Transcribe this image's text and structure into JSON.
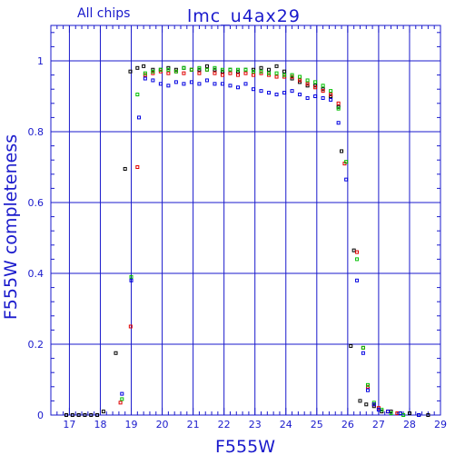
{
  "chart_data": {
    "type": "scatter",
    "title": "lmc_u4ax29",
    "subtitle": "All chips",
    "xlabel": "F555W",
    "ylabel": "F555W completeness",
    "xlim": [
      16.4,
      29
    ],
    "ylim": [
      0,
      1.1
    ],
    "grid": true,
    "colors": {
      "axis": "#1a1acc",
      "grid": "#1a1acc"
    },
    "x_major_ticks": [
      {
        "v": 17,
        "label": "17"
      },
      {
        "v": 18,
        "label": "18"
      },
      {
        "v": 19,
        "label": "19"
      },
      {
        "v": 20,
        "label": "20"
      },
      {
        "v": 21,
        "label": "21"
      },
      {
        "v": 22,
        "label": "22"
      },
      {
        "v": 23,
        "label": "23"
      },
      {
        "v": 24,
        "label": "24"
      },
      {
        "v": 25,
        "label": "25"
      },
      {
        "v": 26,
        "label": "26"
      },
      {
        "v": 27,
        "label": "27"
      },
      {
        "v": 28,
        "label": "28"
      },
      {
        "v": 29,
        "label": "29"
      }
    ],
    "y_major_ticks": [
      {
        "v": 0,
        "label": "0"
      },
      {
        "v": 0.2,
        "label": "0.2"
      },
      {
        "v": 0.4,
        "label": "0.4"
      },
      {
        "v": 0.6,
        "label": "0.6"
      },
      {
        "v": 0.8,
        "label": "0.8"
      },
      {
        "v": 1.0,
        "label": "1"
      }
    ],
    "series": [
      {
        "color": "#000000",
        "points": [
          [
            16.9,
            0
          ],
          [
            17.1,
            0
          ],
          [
            17.3,
            0
          ],
          [
            17.5,
            0
          ],
          [
            17.7,
            0
          ],
          [
            17.9,
            0
          ],
          [
            18.1,
            0.01
          ],
          [
            18.5,
            0.175
          ],
          [
            18.8,
            0.695
          ],
          [
            18.97,
            0.97
          ],
          [
            19.2,
            0.98
          ],
          [
            19.4,
            0.985
          ],
          [
            19.7,
            0.975
          ],
          [
            19.95,
            0.975
          ],
          [
            20.2,
            0.98
          ],
          [
            20.45,
            0.975
          ],
          [
            20.7,
            0.98
          ],
          [
            20.95,
            0.975
          ],
          [
            21.2,
            0.975
          ],
          [
            21.45,
            0.985
          ],
          [
            21.7,
            0.975
          ],
          [
            21.95,
            0.97
          ],
          [
            22.2,
            0.975
          ],
          [
            22.45,
            0.97
          ],
          [
            22.7,
            0.975
          ],
          [
            22.95,
            0.975
          ],
          [
            23.2,
            0.98
          ],
          [
            23.45,
            0.975
          ],
          [
            23.7,
            0.985
          ],
          [
            23.95,
            0.97
          ],
          [
            24.2,
            0.95
          ],
          [
            24.45,
            0.94
          ],
          [
            24.7,
            0.93
          ],
          [
            24.95,
            0.93
          ],
          [
            25.2,
            0.92
          ],
          [
            25.45,
            0.9
          ],
          [
            25.7,
            0.87
          ],
          [
            25.8,
            0.745
          ],
          [
            26.2,
            0.465
          ],
          [
            26.1,
            0.195
          ],
          [
            26.4,
            0.04
          ],
          [
            26.6,
            0.03
          ],
          [
            26.85,
            0.025
          ],
          [
            27.1,
            0.01
          ],
          [
            27.4,
            0.01
          ],
          [
            27.7,
            0.005
          ],
          [
            28.0,
            0.005
          ],
          [
            28.3,
            0
          ],
          [
            28.6,
            0
          ]
        ]
      },
      {
        "color": "#e00000",
        "points": [
          [
            18.65,
            0.035
          ],
          [
            18.98,
            0.25
          ],
          [
            19.2,
            0.7
          ],
          [
            19.45,
            0.96
          ],
          [
            19.7,
            0.965
          ],
          [
            19.95,
            0.97
          ],
          [
            20.2,
            0.965
          ],
          [
            20.45,
            0.97
          ],
          [
            20.7,
            0.965
          ],
          [
            20.95,
            0.975
          ],
          [
            21.2,
            0.965
          ],
          [
            21.45,
            0.975
          ],
          [
            21.7,
            0.965
          ],
          [
            21.95,
            0.96
          ],
          [
            22.2,
            0.965
          ],
          [
            22.45,
            0.96
          ],
          [
            22.7,
            0.965
          ],
          [
            22.95,
            0.96
          ],
          [
            23.2,
            0.965
          ],
          [
            23.45,
            0.96
          ],
          [
            23.7,
            0.955
          ],
          [
            23.95,
            0.955
          ],
          [
            24.2,
            0.955
          ],
          [
            24.45,
            0.945
          ],
          [
            24.7,
            0.935
          ],
          [
            24.95,
            0.925
          ],
          [
            25.2,
            0.915
          ],
          [
            25.45,
            0.905
          ],
          [
            25.7,
            0.88
          ],
          [
            25.9,
            0.71
          ],
          [
            26.3,
            0.46
          ],
          [
            26.5,
            0.19
          ],
          [
            26.65,
            0.08
          ],
          [
            26.85,
            0.03
          ],
          [
            27.0,
            0.02
          ],
          [
            27.3,
            0.01
          ],
          [
            27.6,
            0.005
          ]
        ]
      },
      {
        "color": "#00c000",
        "points": [
          [
            18.7,
            0.045
          ],
          [
            19.0,
            0.39
          ],
          [
            19.2,
            0.905
          ],
          [
            19.45,
            0.965
          ],
          [
            19.7,
            0.97
          ],
          [
            19.95,
            0.975
          ],
          [
            20.2,
            0.975
          ],
          [
            20.45,
            0.97
          ],
          [
            20.7,
            0.98
          ],
          [
            20.95,
            0.975
          ],
          [
            21.2,
            0.98
          ],
          [
            21.45,
            0.975
          ],
          [
            21.7,
            0.98
          ],
          [
            21.95,
            0.975
          ],
          [
            22.2,
            0.975
          ],
          [
            22.45,
            0.975
          ],
          [
            22.7,
            0.975
          ],
          [
            22.95,
            0.97
          ],
          [
            23.2,
            0.97
          ],
          [
            23.45,
            0.965
          ],
          [
            23.7,
            0.965
          ],
          [
            23.95,
            0.96
          ],
          [
            24.2,
            0.96
          ],
          [
            24.45,
            0.955
          ],
          [
            24.7,
            0.945
          ],
          [
            24.95,
            0.94
          ],
          [
            25.2,
            0.93
          ],
          [
            25.45,
            0.915
          ],
          [
            25.7,
            0.865
          ],
          [
            25.95,
            0.715
          ],
          [
            26.3,
            0.44
          ],
          [
            26.5,
            0.19
          ],
          [
            26.65,
            0.085
          ],
          [
            26.85,
            0.035
          ],
          [
            27.1,
            0.015
          ],
          [
            27.4,
            0.005
          ],
          [
            27.8,
            0
          ]
        ]
      },
      {
        "color": "#0000e0",
        "points": [
          [
            18.7,
            0.06
          ],
          [
            19.0,
            0.38
          ],
          [
            19.25,
            0.84
          ],
          [
            19.45,
            0.95
          ],
          [
            19.7,
            0.945
          ],
          [
            19.95,
            0.935
          ],
          [
            20.2,
            0.93
          ],
          [
            20.45,
            0.94
          ],
          [
            20.7,
            0.935
          ],
          [
            20.95,
            0.94
          ],
          [
            21.2,
            0.935
          ],
          [
            21.45,
            0.945
          ],
          [
            21.7,
            0.935
          ],
          [
            21.95,
            0.935
          ],
          [
            22.2,
            0.93
          ],
          [
            22.45,
            0.925
          ],
          [
            22.7,
            0.935
          ],
          [
            22.95,
            0.92
          ],
          [
            23.2,
            0.915
          ],
          [
            23.45,
            0.91
          ],
          [
            23.7,
            0.905
          ],
          [
            23.95,
            0.91
          ],
          [
            24.2,
            0.915
          ],
          [
            24.45,
            0.905
          ],
          [
            24.7,
            0.895
          ],
          [
            24.95,
            0.9
          ],
          [
            25.2,
            0.895
          ],
          [
            25.45,
            0.89
          ],
          [
            25.7,
            0.825
          ],
          [
            25.95,
            0.665
          ],
          [
            26.3,
            0.38
          ],
          [
            26.5,
            0.175
          ],
          [
            26.65,
            0.07
          ],
          [
            26.85,
            0.03
          ],
          [
            27.0,
            0.015
          ],
          [
            27.3,
            0.01
          ],
          [
            27.7,
            0.005
          ],
          [
            28.3,
            0
          ]
        ]
      }
    ]
  }
}
